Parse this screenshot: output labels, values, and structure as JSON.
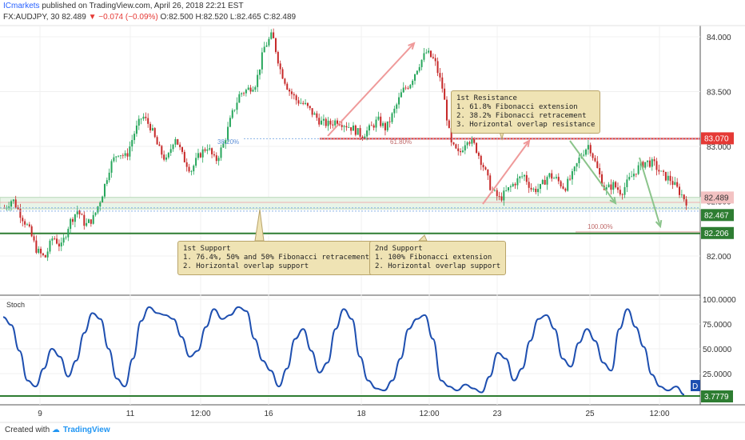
{
  "header": {
    "brand": "ICmarkets",
    "published": "published on TradingView.com, April 26, 2018 22:21 EST",
    "symbol": "FX:AUDJPY, 30",
    "last": "82.489",
    "change": "▼ −0.074 (−0.09%)",
    "ohlc": "O:82.500 H:82.520 L:82.465 C:82.489"
  },
  "footer": {
    "created_with": "Created with",
    "brand": "TradingView"
  },
  "price_axis": {
    "ticks": [
      "84.000",
      "83.500",
      "83.000",
      "82.500",
      "82.000"
    ]
  },
  "price_labels": [
    {
      "text": "83.070",
      "color": "#e53935",
      "text_color": "#ffffff"
    },
    {
      "text": "82.489",
      "color": "#f3c2c2",
      "text_color": "#333333"
    },
    {
      "text": "82.467",
      "color": "#2e7d32",
      "text_color": "#ffffff"
    },
    {
      "text": "82.206",
      "color": "#2e7d32",
      "text_color": "#ffffff"
    }
  ],
  "fib_labels": {
    "retr": "38.20%",
    "ext": "61.80%",
    "full": "100.00%"
  },
  "callouts": {
    "resistance": {
      "title": "1st Resistance",
      "lines": [
        "1. 61.8% Fibonacci extension",
        "2. 38.2% Fibonacci retracement",
        "3. Horizontal overlap resistance"
      ]
    },
    "support1": {
      "title": "1st Support",
      "lines": [
        "1. 76.4%, 50% and 50% Fibonacci retracement",
        "2. Horizontal overlap support"
      ]
    },
    "support2": {
      "title": "2nd Support",
      "lines": [
        "1. 100% Fibonacci extension",
        "2. Horizontal overlap support"
      ]
    }
  },
  "stoch": {
    "label": "Stoch",
    "ticks": [
      "100.0000",
      "75.0000",
      "50.0000",
      "25.0000"
    ],
    "last_value": "3.7779",
    "badge": "D"
  },
  "time_axis": {
    "labels": [
      "9",
      "11",
      "12:00",
      "16",
      "18",
      "12:00",
      "23",
      "25",
      "12:00"
    ]
  },
  "colors": {
    "up": "#26a65b",
    "down": "#c62828",
    "resistance": "#e53935",
    "support": "#2e7d32",
    "stoch": "#1e4fb0"
  },
  "chart_data": {
    "type": "candlestick",
    "symbol": "FX:AUDJPY",
    "timeframe": "30",
    "ylim": [
      81.65,
      84.12
    ],
    "resistance_levels": [
      83.07
    ],
    "support_levels": [
      82.467,
      82.206
    ],
    "last_price": 82.489,
    "close_path": [
      82.44,
      82.52,
      82.38,
      82.25,
      82.05,
      81.98,
      82.18,
      82.08,
      82.3,
      82.42,
      82.28,
      82.35,
      82.55,
      82.82,
      82.95,
      82.9,
      83.12,
      83.28,
      83.18,
      82.98,
      82.86,
      83.1,
      82.9,
      82.78,
      82.92,
      83.0,
      82.86,
      83.02,
      83.28,
      83.48,
      83.52,
      83.58,
      83.9,
      84.02,
      83.7,
      83.52,
      83.42,
      83.38,
      83.3,
      83.22,
      83.2,
      83.24,
      83.2,
      83.16,
      83.1,
      83.16,
      83.24,
      83.16,
      83.32,
      83.5,
      83.58,
      83.74,
      83.86,
      83.78,
      83.52,
      83.02,
      82.92,
      83.08,
      83.0,
      82.82,
      82.6,
      82.52,
      82.6,
      82.68,
      82.74,
      82.6,
      82.62,
      82.74,
      82.7,
      82.62,
      82.74,
      82.92,
      83.02,
      82.8,
      82.6,
      82.65,
      82.58,
      82.7,
      82.8,
      82.86,
      82.84,
      82.74,
      82.7,
      82.6,
      82.5
    ],
    "stoch_values": [
      82,
      74,
      48,
      18,
      12,
      30,
      50,
      42,
      22,
      38,
      66,
      86,
      80,
      50,
      20,
      12,
      40,
      78,
      92,
      86,
      84,
      80,
      62,
      42,
      48,
      72,
      90,
      80,
      84,
      92,
      88,
      60,
      38,
      28,
      12,
      30,
      60,
      70,
      48,
      26,
      36,
      70,
      90,
      80,
      42,
      18,
      10,
      8,
      18,
      40,
      70,
      80,
      84,
      60,
      18,
      12,
      8,
      14,
      10,
      6,
      22,
      46,
      40,
      18,
      30,
      58,
      80,
      84,
      70,
      40,
      32,
      56,
      70,
      58,
      36,
      28,
      70,
      90,
      72,
      52,
      24,
      12,
      8,
      12,
      3.7779
    ],
    "x_labels": [
      "9",
      "11",
      "12:00",
      "16",
      "18",
      "12:00",
      "23",
      "25",
      "12:00"
    ]
  }
}
